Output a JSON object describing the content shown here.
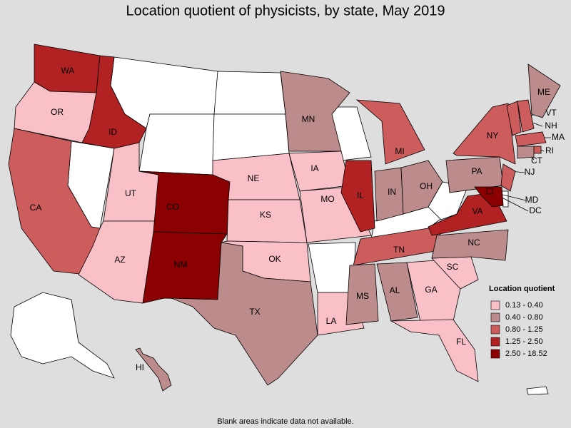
{
  "title": "Location quotient of physicists, by state, May 2019",
  "footnote": "Blank areas indicate data not available.",
  "legend": {
    "title": "Location quotient",
    "classes": [
      {
        "label": "0.13 - 0.40",
        "color": "#f9c1c7"
      },
      {
        "label": "0.40 - 0.80",
        "color": "#bc8b8b"
      },
      {
        "label": "0.80 - 1.25",
        "color": "#cd5c5c"
      },
      {
        "label": "1.25 - 2.50",
        "color": "#b22222"
      },
      {
        "label": "2.50 - 18.52",
        "color": "#8b0000"
      }
    ]
  },
  "states": [
    {
      "label": "WA",
      "class": 3
    },
    {
      "label": "OR",
      "class": 0
    },
    {
      "label": "CA",
      "class": 2
    },
    {
      "label": "ID",
      "class": 3
    },
    {
      "label": "UT",
      "class": 0
    },
    {
      "label": "AZ",
      "class": 0
    },
    {
      "label": "CO",
      "class": 4
    },
    {
      "label": "NM",
      "class": 4
    },
    {
      "label": "NE",
      "class": 0
    },
    {
      "label": "KS",
      "class": 0
    },
    {
      "label": "OK",
      "class": 0
    },
    {
      "label": "TX",
      "class": 1
    },
    {
      "label": "MN",
      "class": 1
    },
    {
      "label": "IA",
      "class": 0
    },
    {
      "label": "MO",
      "class": 0
    },
    {
      "label": "LA",
      "class": 0
    },
    {
      "label": "IL",
      "class": 3
    },
    {
      "label": "MI",
      "class": 2
    },
    {
      "label": "IN",
      "class": 1
    },
    {
      "label": "OH",
      "class": 1
    },
    {
      "label": "TN",
      "class": 2
    },
    {
      "label": "MS",
      "class": 1
    },
    {
      "label": "AL",
      "class": 1
    },
    {
      "label": "GA",
      "class": 0
    },
    {
      "label": "FL",
      "class": 0
    },
    {
      "label": "SC",
      "class": 0
    },
    {
      "label": "NC",
      "class": 1
    },
    {
      "label": "VA",
      "class": 3
    },
    {
      "label": "PA",
      "class": 1
    },
    {
      "label": "NY",
      "class": 2
    },
    {
      "label": "ME",
      "class": 1
    },
    {
      "label": "VT",
      "class": 2
    },
    {
      "label": "NH",
      "class": 2
    },
    {
      "label": "MA",
      "class": 2
    },
    {
      "label": "RI",
      "class": 2
    },
    {
      "label": "CT",
      "class": 1
    },
    {
      "label": "NJ",
      "class": 2
    },
    {
      "label": "MD",
      "class": 4
    },
    {
      "label": "DC",
      "class": 4
    },
    {
      "label": "HI",
      "class": 1
    }
  ]
}
